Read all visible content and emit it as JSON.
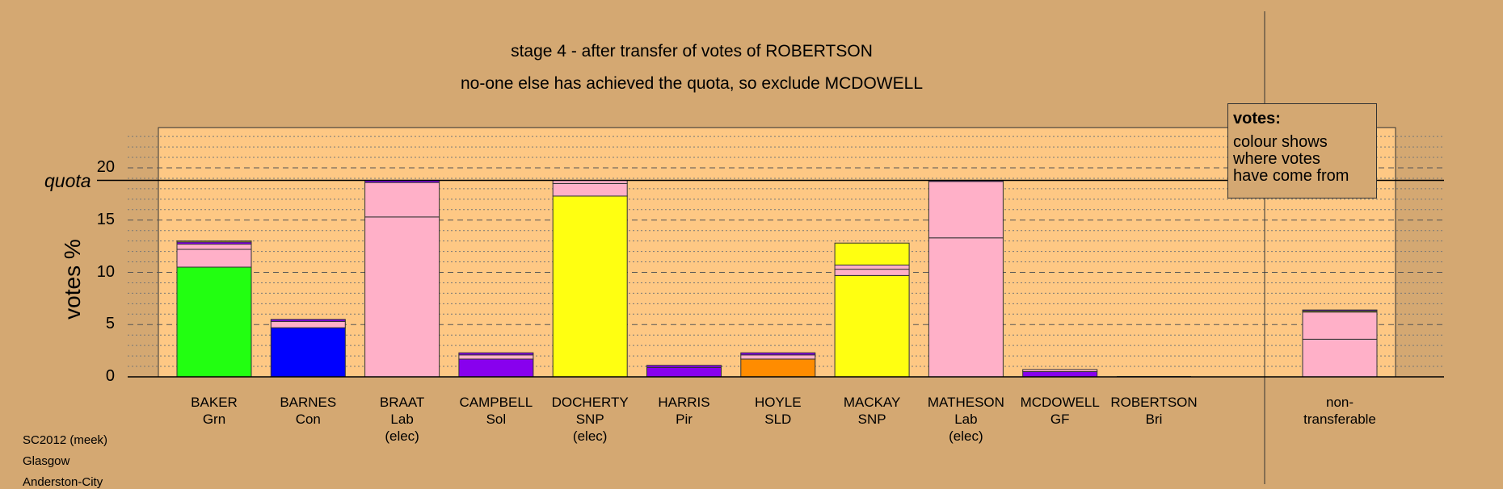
{
  "title": "stage 4 - after transfer of votes of ROBERTSON",
  "subtitle": "no-one else has achieved the quota, so exclude MCDOWELL",
  "footer": [
    "SC2012 (meek)",
    "Glasgow",
    "Anderston-City"
  ],
  "legend": {
    "title": "votes:",
    "lines": [
      "colour shows",
      "where votes",
      "have come from"
    ]
  },
  "colors": {
    "background": "#d4a872",
    "plot_bg": "#fec884",
    "Grn": "#22ff11",
    "Con": "#0000ff",
    "Lab": "#ffb0c8",
    "Sol": "#8800ee",
    "SNP": "#ffff11",
    "Pir": "#8800ee",
    "SLD": "#ff8c00",
    "GF": "#8800ee"
  },
  "chart_data": {
    "type": "bar",
    "stacked": true,
    "ylabel": "votes %",
    "ylim": [
      0,
      24
    ],
    "yticks": [
      0,
      5,
      10,
      15,
      20
    ],
    "quota": 18.8,
    "quota_label": "quota",
    "grid": true,
    "legend_position": "top-right",
    "candidates": [
      {
        "name": "BAKER",
        "party": "Grn",
        "status": "",
        "segments": [
          {
            "value": 10.5,
            "color": "Grn"
          },
          {
            "value": 1.7,
            "color": "Lab"
          },
          {
            "value": 0.5,
            "color": "Lab"
          },
          {
            "value": 0.2,
            "color": "Sol"
          },
          {
            "value": 0.1,
            "color": "SNP"
          }
        ]
      },
      {
        "name": "BARNES",
        "party": "Con",
        "status": "",
        "segments": [
          {
            "value": 4.7,
            "color": "Con"
          },
          {
            "value": 0.6,
            "color": "Lab"
          },
          {
            "value": 0.2,
            "color": "Sol"
          }
        ]
      },
      {
        "name": "BRAAT",
        "party": "Lab",
        "status": "(elec)",
        "segments": [
          {
            "value": 15.3,
            "color": "Lab"
          },
          {
            "value": 3.3,
            "color": "Lab"
          },
          {
            "value": 0.2,
            "color": "Sol"
          }
        ]
      },
      {
        "name": "CAMPBELL",
        "party": "Sol",
        "status": "",
        "segments": [
          {
            "value": 1.7,
            "color": "Sol"
          },
          {
            "value": 0.4,
            "color": "Lab"
          },
          {
            "value": 0.2,
            "color": "Sol"
          }
        ]
      },
      {
        "name": "DOCHERTY",
        "party": "SNP",
        "status": "(elec)",
        "segments": [
          {
            "value": 17.3,
            "color": "SNP"
          },
          {
            "value": 1.2,
            "color": "Lab"
          },
          {
            "value": 0.3,
            "color": "Lab"
          }
        ]
      },
      {
        "name": "HARRIS",
        "party": "Pir",
        "status": "",
        "segments": [
          {
            "value": 0.9,
            "color": "Pir"
          },
          {
            "value": 0.2,
            "color": "Sol"
          }
        ]
      },
      {
        "name": "HOYLE",
        "party": "SLD",
        "status": "",
        "segments": [
          {
            "value": 1.7,
            "color": "SLD"
          },
          {
            "value": 0.4,
            "color": "Lab"
          },
          {
            "value": 0.2,
            "color": "Sol"
          }
        ]
      },
      {
        "name": "MACKAY",
        "party": "SNP",
        "status": "",
        "segments": [
          {
            "value": 9.7,
            "color": "SNP"
          },
          {
            "value": 0.6,
            "color": "Lab"
          },
          {
            "value": 0.4,
            "color": "Lab"
          },
          {
            "value": 2.1,
            "color": "SNP"
          }
        ]
      },
      {
        "name": "MATHESON",
        "party": "Lab",
        "status": "(elec)",
        "segments": [
          {
            "value": 13.3,
            "color": "Lab"
          },
          {
            "value": 5.4,
            "color": "Lab"
          },
          {
            "value": 0.1,
            "color": "Sol"
          }
        ]
      },
      {
        "name": "MCDOWELL",
        "party": "GF",
        "status": "",
        "segments": [
          {
            "value": 0.5,
            "color": "GF"
          },
          {
            "value": 0.2,
            "color": "Lab"
          }
        ]
      },
      {
        "name": "ROBERTSON",
        "party": "Bri",
        "status": "",
        "segments": []
      }
    ],
    "nontransferable": {
      "label": [
        "non-",
        "transferable"
      ],
      "segments": [
        {
          "value": 3.6,
          "color": "Lab"
        },
        {
          "value": 2.6,
          "color": "Lab"
        },
        {
          "value": 0.1,
          "color": "SNP"
        },
        {
          "value": 0.1,
          "color": "Sol"
        }
      ]
    }
  }
}
